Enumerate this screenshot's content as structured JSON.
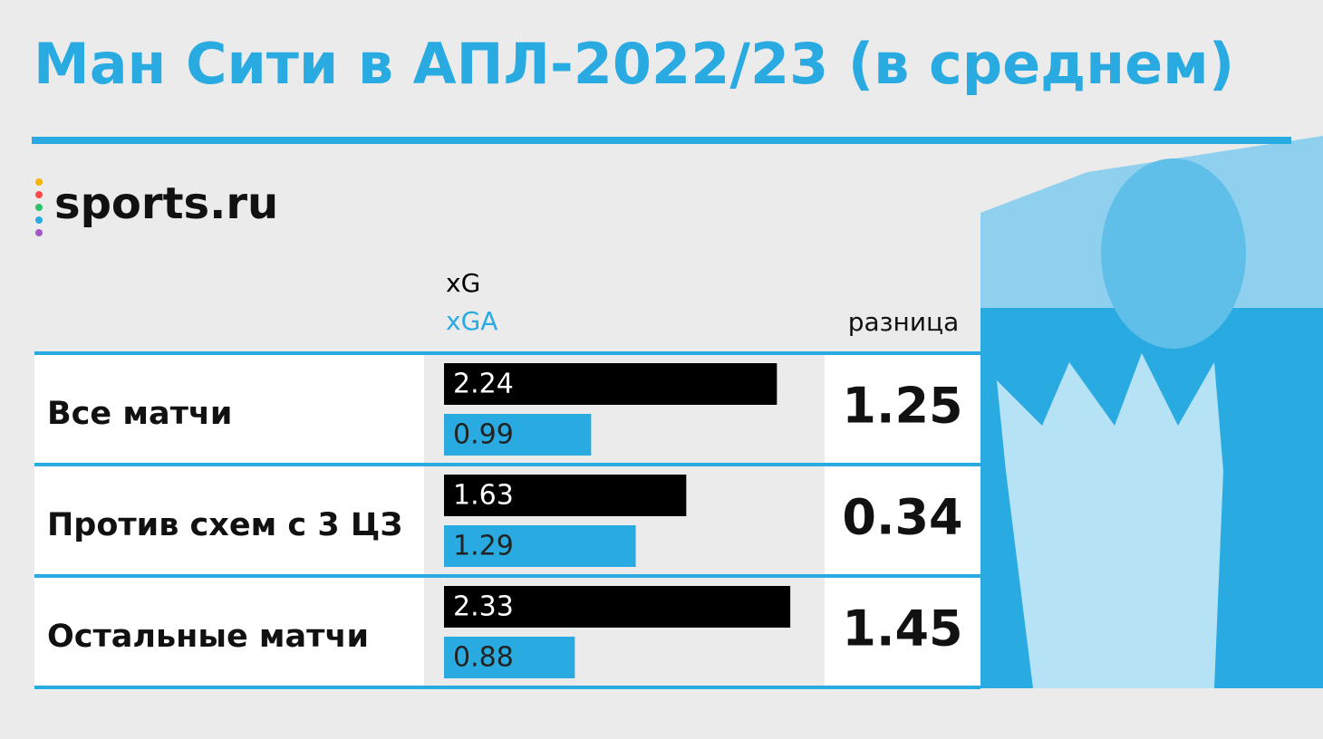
{
  "chart_data": {
    "type": "bar",
    "orientation": "horizontal",
    "title": "Ман Сити в АПЛ-2022/23 (в среднем)",
    "logo": "sports.ru",
    "categories": [
      "Все матчи",
      "Против схем с 3 ЦЗ",
      "Остальные матчи"
    ],
    "series": [
      {
        "name": "xG",
        "color": "#000000",
        "values": [
          2.24,
          1.63,
          2.33
        ]
      },
      {
        "name": "xGA",
        "color": "#29abe2",
        "values": [
          0.99,
          1.29,
          0.88
        ]
      }
    ],
    "difference": {
      "name": "разница",
      "values": [
        1.25,
        0.34,
        1.45
      ]
    },
    "xlim": [
      0,
      2.5
    ]
  }
}
